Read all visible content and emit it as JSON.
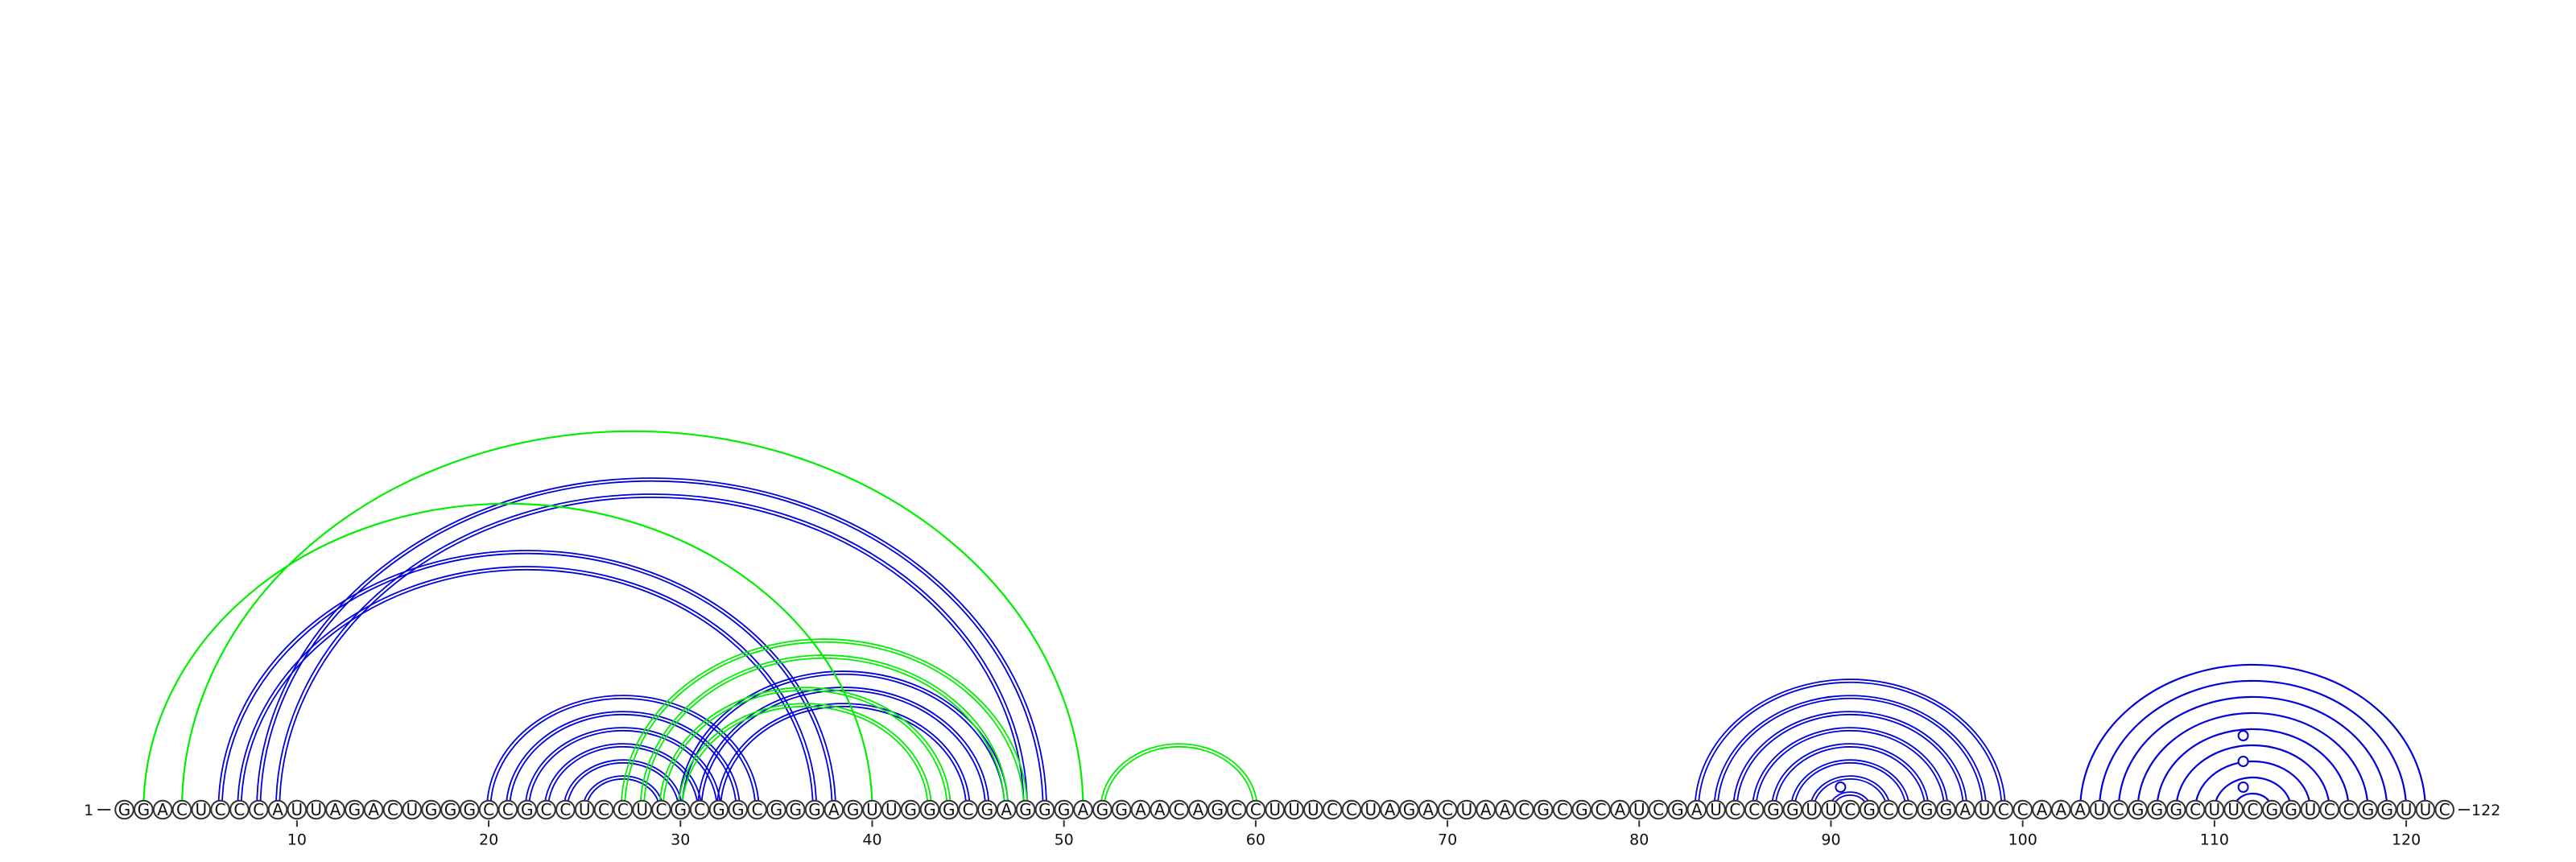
{
  "sequence": "GGACUCCCAUUAGACUGGGCCGCCUCCUCGCGGCGGGAGUUGGGCGAGGGAGGAACAGCCUUUCCUAGACUAACGCGCAUCGAUCCGGUUCGCCGGAUCCAAAUCGGGCUUCGGUCCGGUUC",
  "start_label": "1",
  "end_label": "122",
  "tick_labels": [
    "10",
    "20",
    "30",
    "40",
    "50",
    "60",
    "70",
    "80",
    "90",
    "100",
    "110",
    "120"
  ],
  "tick_positions": [
    10,
    20,
    30,
    40,
    50,
    60,
    70,
    80,
    90,
    100,
    110,
    120
  ],
  "colors": {
    "blue_arc": "#0000dd",
    "green_arc": "#00ee00",
    "circle_stroke": "#333333",
    "text": "#111111"
  },
  "arcs": [
    {
      "i": 20,
      "j": 34,
      "color": "blue",
      "double": true
    },
    {
      "i": 21,
      "j": 33,
      "color": "blue",
      "double": true
    },
    {
      "i": 22,
      "j": 32,
      "color": "blue",
      "double": true
    },
    {
      "i": 23,
      "j": 31,
      "color": "blue",
      "double": true
    },
    {
      "i": 24,
      "j": 30,
      "color": "blue",
      "double": true
    },
    {
      "i": 25,
      "j": 29,
      "color": "blue",
      "double": true
    },
    {
      "i": 6,
      "j": 38,
      "color": "blue",
      "double": true
    },
    {
      "i": 7,
      "j": 37,
      "color": "blue",
      "double": true
    },
    {
      "i": 8,
      "j": 49,
      "color": "blue",
      "double": true
    },
    {
      "i": 9,
      "j": 48,
      "color": "blue",
      "double": true
    },
    {
      "i": 30,
      "j": 47,
      "color": "blue",
      "double": true
    },
    {
      "i": 31,
      "j": 46,
      "color": "blue",
      "double": true
    },
    {
      "i": 32,
      "j": 45,
      "color": "blue",
      "double": true
    },
    {
      "i": 2,
      "j": 40,
      "color": "green",
      "double": false
    },
    {
      "i": 4,
      "j": 51,
      "color": "green",
      "double": false
    },
    {
      "i": 27,
      "j": 48,
      "color": "green",
      "double": true
    },
    {
      "i": 28,
      "j": 47,
      "color": "green",
      "double": true
    },
    {
      "i": 29,
      "j": 44,
      "color": "green",
      "double": true
    },
    {
      "i": 30,
      "j": 43,
      "color": "green",
      "double": true
    },
    {
      "i": 52,
      "j": 60,
      "color": "green",
      "double": true
    },
    {
      "i": 83,
      "j": 99,
      "color": "blue",
      "double": true
    },
    {
      "i": 84,
      "j": 98,
      "color": "blue",
      "double": true
    },
    {
      "i": 85,
      "j": 97,
      "color": "blue",
      "double": true
    },
    {
      "i": 86,
      "j": 96,
      "color": "blue",
      "double": true
    },
    {
      "i": 87,
      "j": 95,
      "color": "blue",
      "double": true
    },
    {
      "i": 88,
      "j": 94,
      "color": "blue",
      "double": true
    },
    {
      "i": 89,
      "j": 93,
      "color": "blue",
      "double": true
    },
    {
      "i": 90,
      "j": 92,
      "color": "blue",
      "double": true
    },
    {
      "i": 103,
      "j": 121,
      "color": "blue",
      "double": false
    },
    {
      "i": 104,
      "j": 120,
      "color": "blue",
      "double": false
    },
    {
      "i": 105,
      "j": 119,
      "color": "blue",
      "double": false
    },
    {
      "i": 106,
      "j": 118,
      "color": "blue",
      "double": false
    },
    {
      "i": 107,
      "j": 117,
      "color": "blue",
      "double": false
    },
    {
      "i": 108,
      "j": 116,
      "color": "blue",
      "double": false
    },
    {
      "i": 109,
      "j": 115,
      "color": "blue",
      "double": false
    },
    {
      "i": 110,
      "j": 114,
      "color": "blue",
      "double": false
    },
    {
      "i": 111,
      "j": 113,
      "color": "blue",
      "double": false
    }
  ],
  "loop_markers": [
    {
      "after": 90,
      "height": 28
    },
    {
      "after": 111,
      "height": 28
    },
    {
      "after": 111,
      "height": 60
    },
    {
      "after": 111,
      "height": 92
    }
  ]
}
